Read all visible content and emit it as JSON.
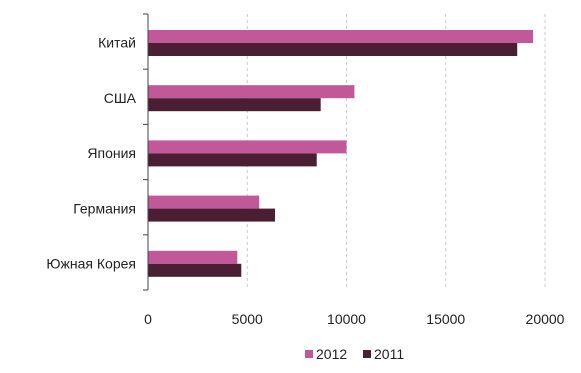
{
  "chart_data": {
    "type": "bar",
    "orientation": "horizontal",
    "categories": [
      "Китай",
      "США",
      "Япония",
      "Германия",
      "Южная Корея"
    ],
    "series": [
      {
        "name": "2012",
        "color": "#c0589a",
        "values": [
          19400,
          10400,
          10000,
          5600,
          4500
        ]
      },
      {
        "name": "2011",
        "color": "#4a1f33",
        "values": [
          18600,
          8700,
          8500,
          6400,
          4700
        ]
      }
    ],
    "xlim": [
      0,
      20000
    ],
    "xticks": [
      0,
      5000,
      10000,
      15000,
      20000
    ],
    "xtick_labels": [
      "0",
      "5000",
      "10000",
      "15000",
      "20000"
    ],
    "grid": "vertical-dashed",
    "legend_position": "bottom"
  }
}
